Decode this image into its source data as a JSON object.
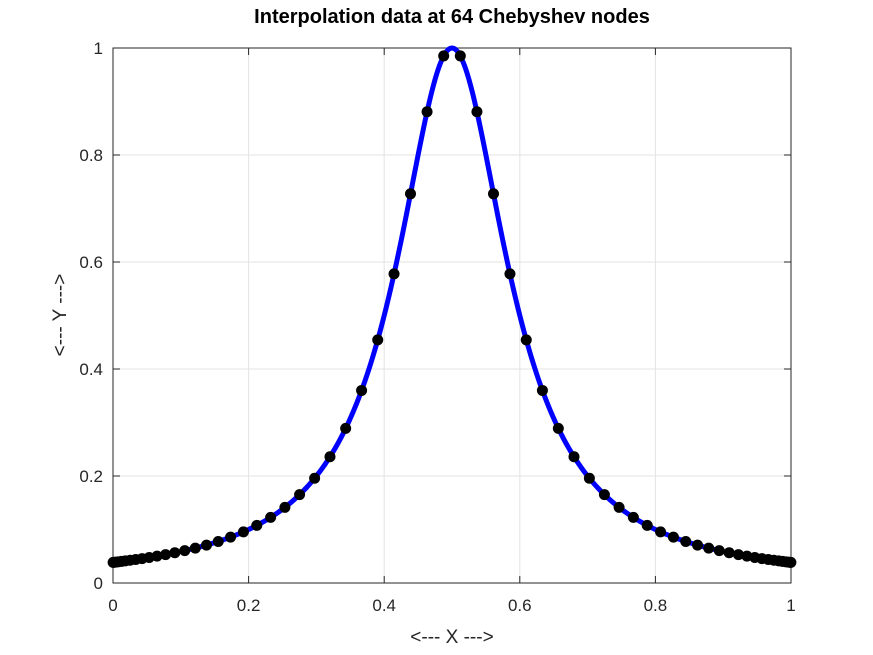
{
  "chart_data": {
    "type": "line",
    "title": "Interpolation data at 64 Chebyshev nodes",
    "xlabel": "<--- X --->",
    "ylabel": "<--- Y --->",
    "xlim": [
      0,
      1
    ],
    "ylim": [
      0,
      1
    ],
    "xticks": [
      "0",
      "0.2",
      "0.4",
      "0.6",
      "0.8",
      "1"
    ],
    "yticks": [
      "0",
      "0.2",
      "0.4",
      "0.6",
      "0.8",
      "1"
    ],
    "grid": true,
    "function": "1/(1+25*(2x-1)^2)",
    "series": [
      {
        "kind": "interpolant",
        "color": "#0000ff"
      },
      {
        "kind": "nodes",
        "color": "#000000",
        "node_count": 64,
        "node_type": "Chebyshev"
      }
    ]
  }
}
